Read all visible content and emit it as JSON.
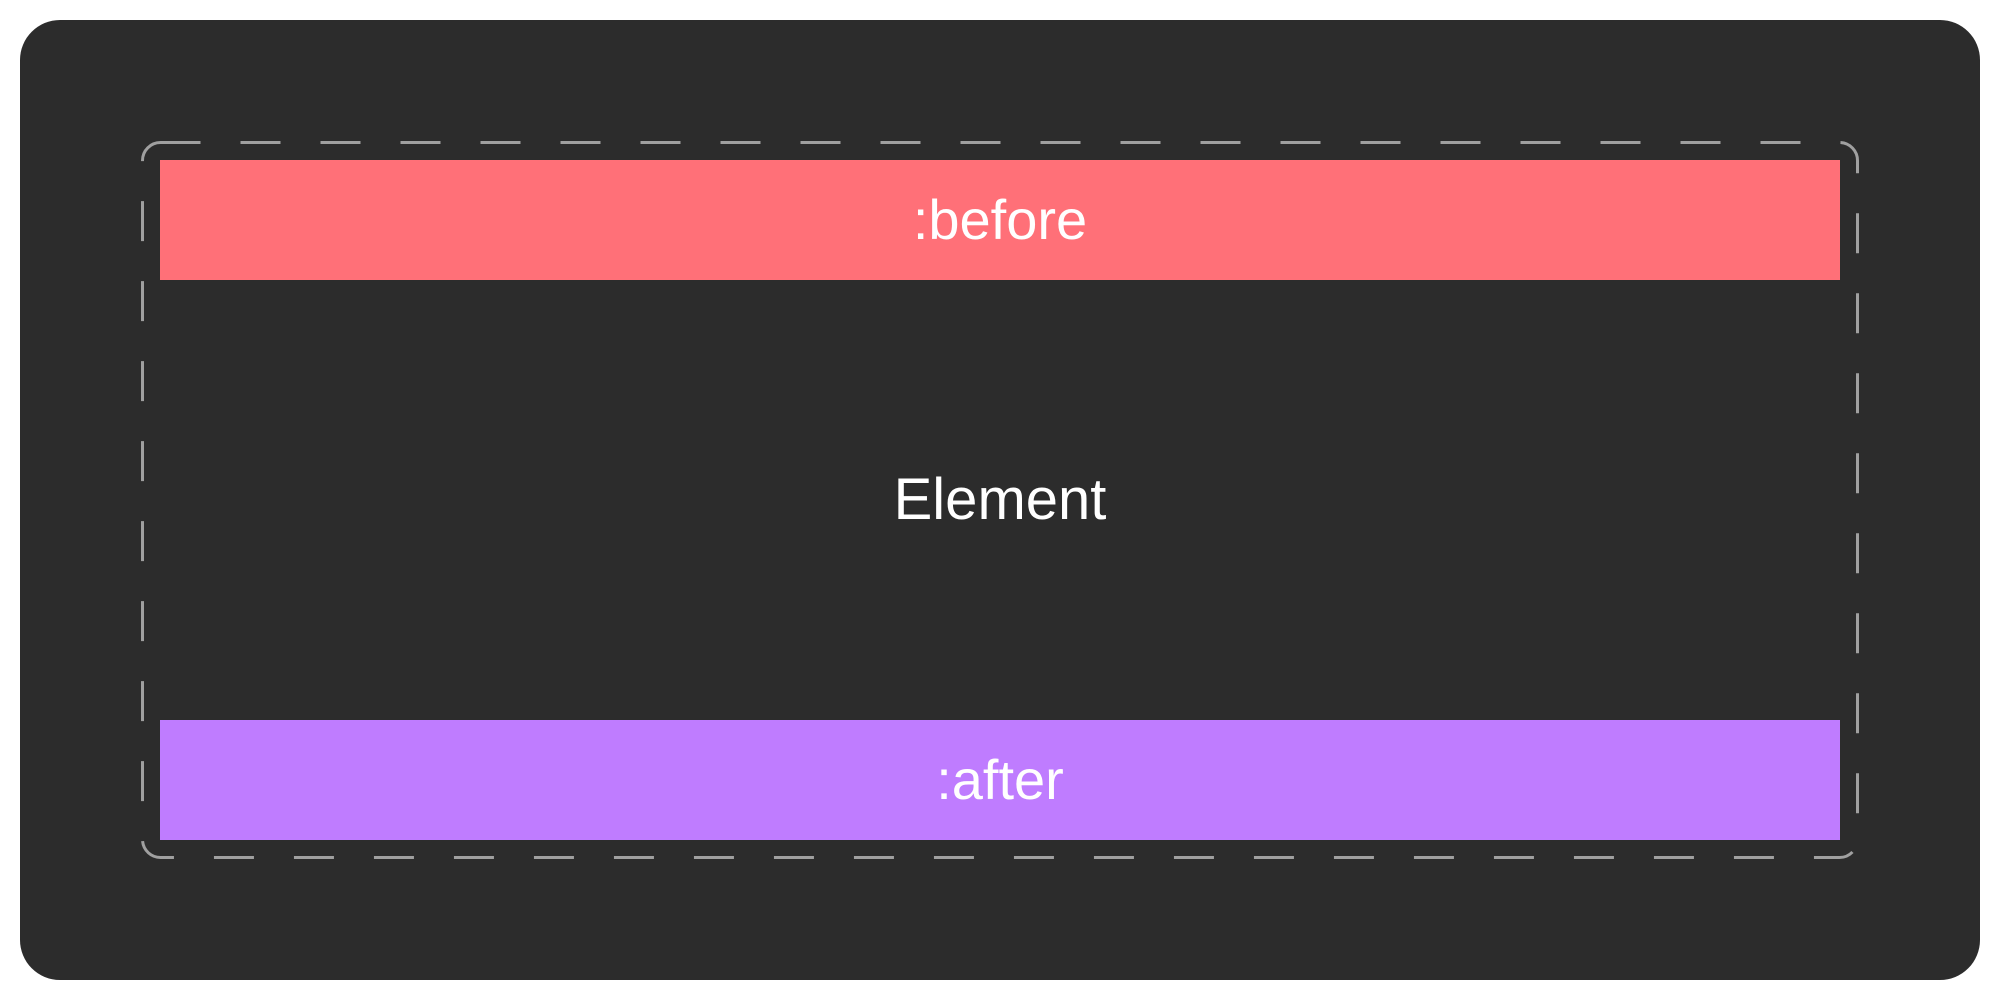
{
  "diagram": {
    "panel_color": "#2c2c2c",
    "frame_border_color": "#a0a0a0",
    "before_box": {
      "label": ":before",
      "color": "#ff7078"
    },
    "element": {
      "label": "Element"
    },
    "after_box": {
      "label": ":after",
      "color": "#bf7cff"
    }
  }
}
